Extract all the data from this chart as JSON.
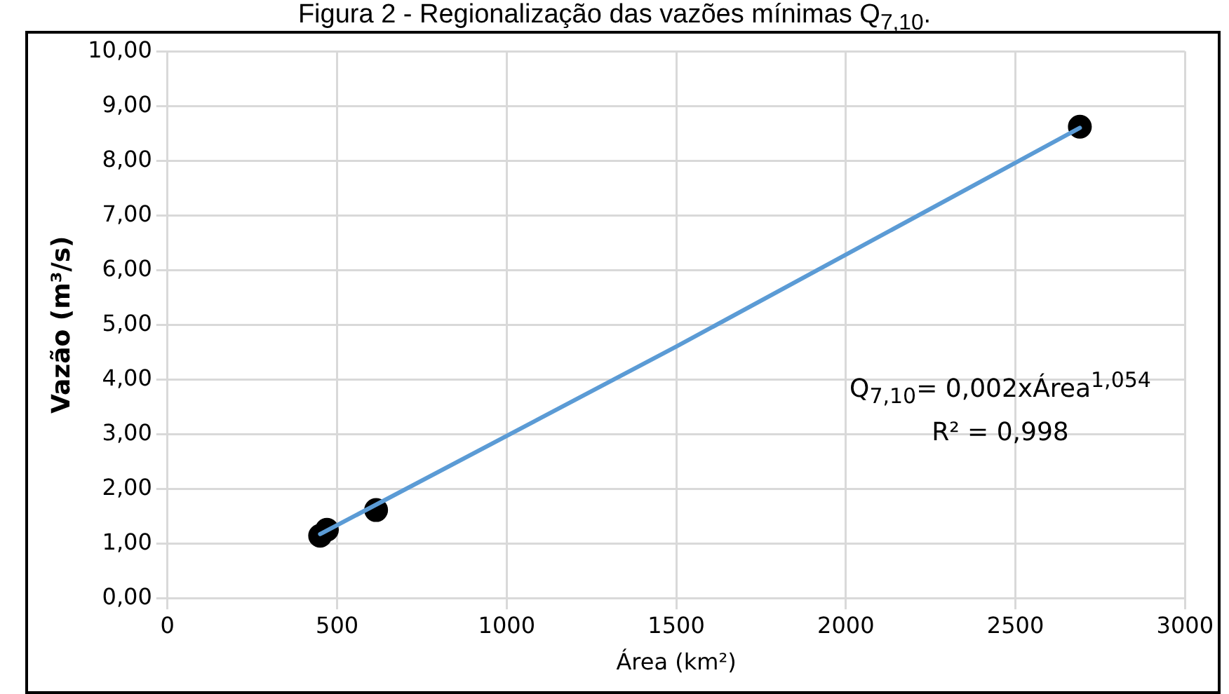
{
  "chart_data": {
    "type": "scatter",
    "title": "Figura 2 - Regionalização das vazões mínimas Q$_{7,10}$.",
    "xlabel": "Área (km²)",
    "ylabel": "Vazão (m³/s)",
    "series": [
      {
        "marker": "circle",
        "color": "#000000",
        "x": [
          450,
          470,
          615,
          2690
        ],
        "values": [
          1.14,
          1.25,
          1.61,
          8.62
        ]
      },
      {
        "type": "line",
        "color": "#5b9bd5",
        "x": [
          450,
          1500,
          2690
        ],
        "values": [
          1.17,
          4.6,
          8.6
        ]
      }
    ],
    "annotations": [
      "Q$_{7,10}$= 0,002xÁrea$^{1,054}$",
      "R² = 0,998"
    ],
    "xlim": [
      0,
      3000
    ],
    "xticks": [
      0,
      500,
      1000,
      1500,
      2000,
      2500,
      3000
    ],
    "ylim": [
      0,
      10
    ],
    "yticks": [
      {
        "value": 0,
        "label": "0,00"
      },
      {
        "value": 1,
        "label": "1,00"
      },
      {
        "value": 2,
        "label": "2,00"
      },
      {
        "value": 3,
        "label": "3,00"
      },
      {
        "value": 4,
        "label": "4,00"
      },
      {
        "value": 5,
        "label": "5,00"
      },
      {
        "value": 6,
        "label": "6,00"
      },
      {
        "value": 7,
        "label": "7,00"
      },
      {
        "value": 8,
        "label": "8,00"
      },
      {
        "value": 9,
        "label": "9,00"
      },
      {
        "value": 10,
        "label": "10,00"
      }
    ],
    "grid": true,
    "legend": false
  }
}
